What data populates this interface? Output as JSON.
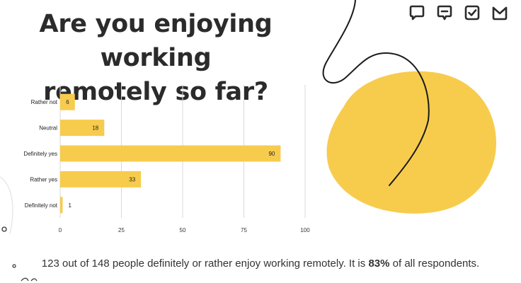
{
  "title": {
    "line1": "Are you enjoying working",
    "line2": "remotely so far?"
  },
  "caption": {
    "before": "123 out of 148 people definitely or rather enjoy working remotely. It is ",
    "highlight": "83%",
    "after": " of all respondents."
  },
  "icons": [
    "chat-bubble-icon",
    "chat-text-icon",
    "checkbox-icon",
    "inbox-icon"
  ],
  "colors": {
    "bar": "#f7cc4d",
    "blob": "#f7cc4d",
    "grid": "#d9d9d9",
    "icon": "#2b2b2b"
  },
  "chart_data": {
    "type": "bar",
    "orientation": "horizontal",
    "categories": [
      "Rather not",
      "Neutral",
      "Definitely yes",
      "Rather yes",
      "Definitely not"
    ],
    "values": [
      6,
      18,
      90,
      33,
      1
    ],
    "xticks": [
      0,
      25,
      50,
      75,
      100
    ],
    "xlim": [
      0,
      100
    ],
    "grid": true,
    "data_labels": true
  }
}
